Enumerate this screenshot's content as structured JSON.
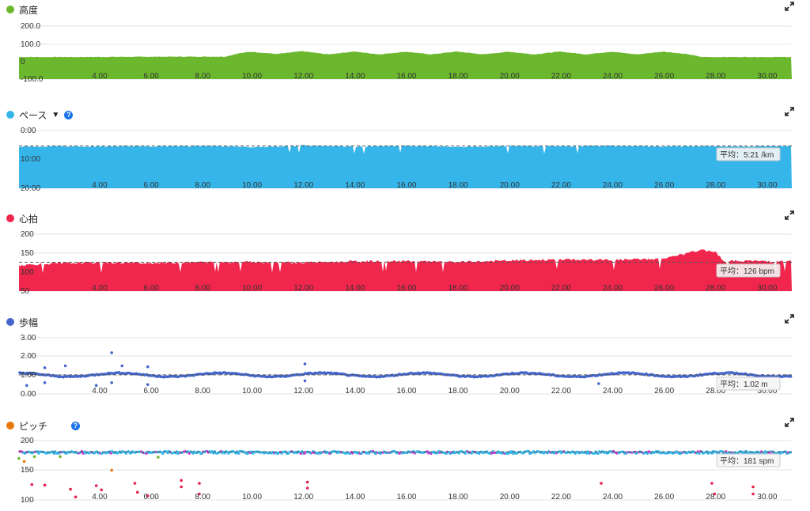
{
  "x_ticks": [
    "4.00",
    "6.00",
    "8.00",
    "10.00",
    "12.00",
    "14.00",
    "16.00",
    "18.00",
    "20.00",
    "22.00",
    "24.00",
    "26.00",
    "28.00",
    "30.00"
  ],
  "chart_data": [
    {
      "type": "area",
      "title": "高度",
      "color": "#6bb82e",
      "y_ticks": [
        "200.0",
        "100.0",
        "0",
        "-100.0"
      ],
      "ylim": [
        -100,
        200
      ],
      "xlim": [
        1.0,
        31.0
      ],
      "series": [
        {
          "x": [
            1,
            3,
            5,
            7,
            9,
            9.5,
            10,
            11,
            12,
            13,
            14,
            15,
            16,
            17,
            18,
            19,
            20,
            21,
            22,
            23,
            24,
            25,
            26,
            27,
            27.5,
            28,
            29,
            30,
            31
          ],
          "values": [
            25,
            25,
            26,
            27,
            27,
            45,
            55,
            42,
            58,
            40,
            56,
            40,
            55,
            40,
            56,
            40,
            55,
            40,
            56,
            40,
            55,
            40,
            56,
            40,
            25,
            25,
            25,
            25,
            25
          ]
        }
      ]
    },
    {
      "type": "area",
      "title": "ペース",
      "color": "#35b5ea",
      "y_ticks": [
        "0:00",
        "10:00",
        "20:00"
      ],
      "ylim": [
        0,
        20
      ],
      "xlim": [
        1.0,
        31.0
      ],
      "average_label": "平均：5:21 /km",
      "average": 5.35,
      "series": [
        {
          "x": [
            1,
            5,
            9,
            10,
            12,
            14,
            16,
            18,
            20,
            22,
            24,
            26,
            27,
            28,
            31
          ],
          "values": [
            5.6,
            5.5,
            5.4,
            5.8,
            5.2,
            5.6,
            5.3,
            5.7,
            5.4,
            5.5,
            5.3,
            5.6,
            5.4,
            5.6,
            5.4
          ]
        }
      ]
    },
    {
      "type": "area",
      "title": "心拍",
      "color": "#f0264d",
      "y_ticks": [
        "200",
        "150",
        "100",
        "50"
      ],
      "ylim": [
        50,
        200
      ],
      "xlim": [
        1.0,
        31.0
      ],
      "average_label": "平均：126 bpm",
      "average": 126,
      "series": [
        {
          "x": [
            1,
            2,
            4,
            6,
            8,
            10,
            12,
            14,
            16,
            18,
            20,
            22,
            24,
            26,
            27,
            27.4,
            28,
            28.4,
            29,
            31
          ],
          "values": [
            118,
            122,
            125,
            124,
            126,
            127,
            125,
            128,
            129,
            126,
            130,
            133,
            132,
            135,
            150,
            158,
            155,
            128,
            130,
            128
          ]
        }
      ]
    },
    {
      "type": "scatter",
      "title": "歩幅",
      "color": "#4466cc",
      "y_ticks": [
        "3.00",
        "2.00",
        "1.00",
        "0.00"
      ],
      "ylim": [
        0,
        3
      ],
      "xlim": [
        1.0,
        31.0
      ],
      "average_label": "平均：1.02 m",
      "average": 1.02,
      "mean_level": 1.02
    },
    {
      "type": "scatter",
      "title": "ピッチ",
      "color": "#e8780b",
      "y_ticks": [
        "200",
        "150",
        "100"
      ],
      "ylim": [
        100,
        200
      ],
      "xlim": [
        1.0,
        31.0
      ],
      "average_label": "平均：181 spm",
      "average": 181,
      "point_colors": [
        "#35b5ea",
        "#cc33cc",
        "#e61e4d",
        "#6bb82e",
        "#e8780b"
      ]
    }
  ]
}
